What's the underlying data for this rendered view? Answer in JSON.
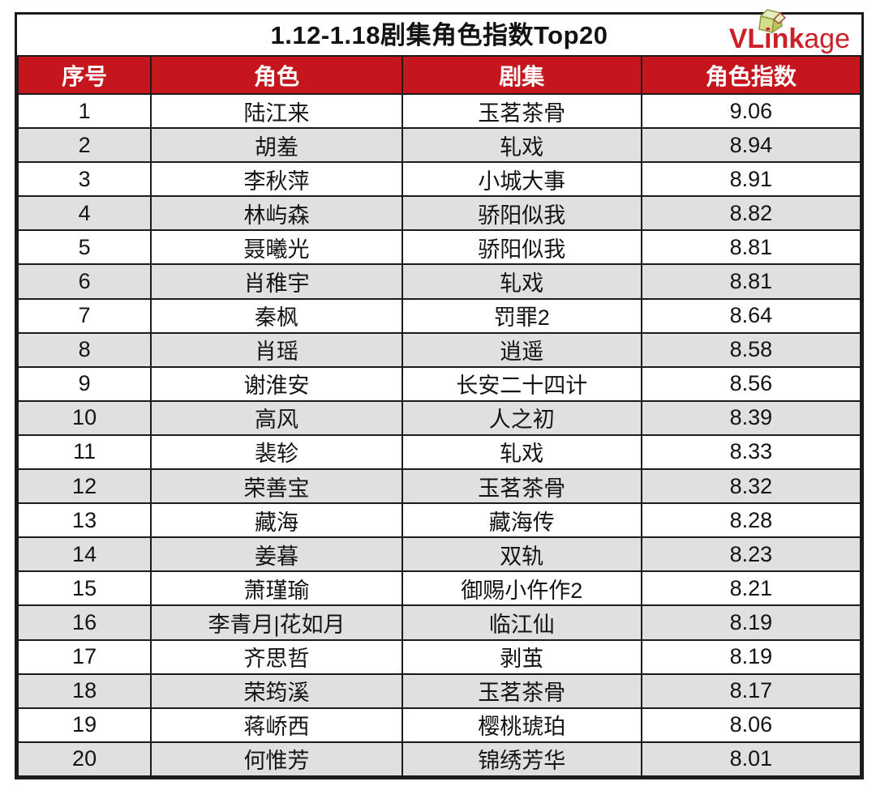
{
  "header": {
    "title": "1.12-1.18剧集角色指数Top20",
    "logo": {
      "bold": "VLink",
      "light": "age",
      "icon": "box-3d-icon"
    }
  },
  "chart_data": {
    "type": "table",
    "title": "1.12-1.18剧集角色指数Top20",
    "columns": [
      "序号",
      "角色",
      "剧集",
      "角色指数"
    ],
    "rows": [
      [
        "1",
        "陆江来",
        "玉茗茶骨",
        "9.06"
      ],
      [
        "2",
        "胡羞",
        "轧戏",
        "8.94"
      ],
      [
        "3",
        "李秋萍",
        "小城大事",
        "8.91"
      ],
      [
        "4",
        "林屿森",
        "骄阳似我",
        "8.82"
      ],
      [
        "5",
        "聂曦光",
        "骄阳似我",
        "8.81"
      ],
      [
        "6",
        "肖稚宇",
        "轧戏",
        "8.81"
      ],
      [
        "7",
        "秦枫",
        "罚罪2",
        "8.64"
      ],
      [
        "8",
        "肖瑶",
        "逍遥",
        "8.58"
      ],
      [
        "9",
        "谢淮安",
        "长安二十四计",
        "8.56"
      ],
      [
        "10",
        "高风",
        "人之初",
        "8.39"
      ],
      [
        "11",
        "裴轸",
        "轧戏",
        "8.33"
      ],
      [
        "12",
        "荣善宝",
        "玉茗茶骨",
        "8.32"
      ],
      [
        "13",
        "藏海",
        "藏海传",
        "8.28"
      ],
      [
        "14",
        "姜暮",
        "双轨",
        "8.23"
      ],
      [
        "15",
        "萧瑾瑜",
        "御赐小仵作2",
        "8.21"
      ],
      [
        "16",
        "李青月|花如月",
        "临江仙",
        "8.19"
      ],
      [
        "17",
        "齐思哲",
        "剥茧",
        "8.19"
      ],
      [
        "18",
        "荣筠溪",
        "玉茗茶骨",
        "8.17"
      ],
      [
        "19",
        "蒋峤西",
        "樱桃琥珀",
        "8.06"
      ],
      [
        "20",
        "何惟芳",
        "锦绣芳华",
        "8.01"
      ]
    ]
  },
  "colors": {
    "accent_red": "#c4161c",
    "logo_red": "#cb2027",
    "row_alt_gray": "#e0e0e0",
    "border_dark": "#1b1b1b",
    "icon_olive_light": "#e6ecc0",
    "icon_olive_mid": "#d3dd8b",
    "icon_olive_dark": "#b8c45f",
    "icon_outline": "#8f9a3f"
  }
}
